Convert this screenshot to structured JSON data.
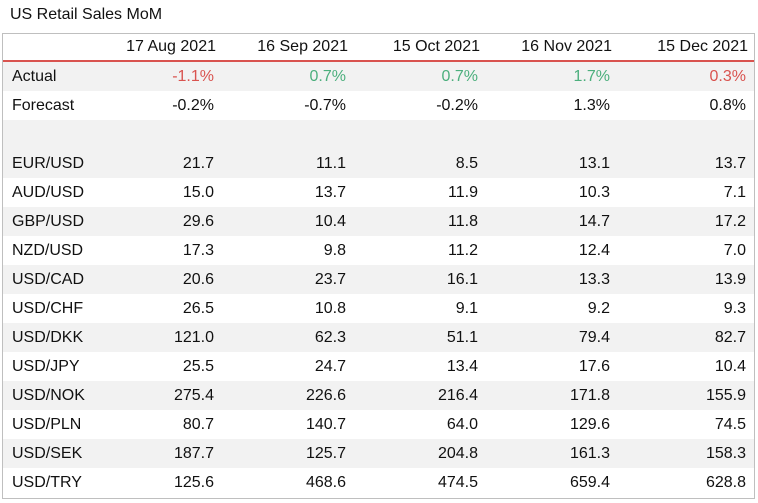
{
  "title": "US Retail Sales MoM",
  "colors": {
    "negative": "#d9534f",
    "positive": "#4caf7d",
    "header_rule": "#d9534f",
    "row_shade": "#f2f2f2"
  },
  "headers": [
    "17 Aug 2021",
    "16 Sep 2021",
    "15 Oct 2021",
    "16 Nov 2021",
    "15 Dec 2021"
  ],
  "actual": {
    "label": "Actual",
    "values": [
      "-1.1%",
      "0.7%",
      "0.7%",
      "1.7%",
      "0.3%"
    ],
    "tone": [
      "negative",
      "positive",
      "positive",
      "positive",
      "negative"
    ]
  },
  "forecast": {
    "label": "Forecast",
    "values": [
      "-0.2%",
      "-0.7%",
      "-0.2%",
      "1.3%",
      "0.8%"
    ]
  },
  "pairs": [
    {
      "label": "EUR/USD",
      "values": [
        "21.7",
        "11.1",
        "8.5",
        "13.1",
        "13.7"
      ]
    },
    {
      "label": "AUD/USD",
      "values": [
        "15.0",
        "13.7",
        "11.9",
        "10.3",
        "7.1"
      ]
    },
    {
      "label": "GBP/USD",
      "values": [
        "29.6",
        "10.4",
        "11.8",
        "14.7",
        "17.2"
      ]
    },
    {
      "label": "NZD/USD",
      "values": [
        "17.3",
        "9.8",
        "11.2",
        "12.4",
        "7.0"
      ]
    },
    {
      "label": "USD/CAD",
      "values": [
        "20.6",
        "23.7",
        "16.1",
        "13.3",
        "13.9"
      ]
    },
    {
      "label": "USD/CHF",
      "values": [
        "26.5",
        "10.8",
        "9.1",
        "9.2",
        "9.3"
      ]
    },
    {
      "label": "USD/DKK",
      "values": [
        "121.0",
        "62.3",
        "51.1",
        "79.4",
        "82.7"
      ]
    },
    {
      "label": "USD/JPY",
      "values": [
        "25.5",
        "24.7",
        "13.4",
        "17.6",
        "10.4"
      ]
    },
    {
      "label": "USD/NOK",
      "values": [
        "275.4",
        "226.6",
        "216.4",
        "171.8",
        "155.9"
      ]
    },
    {
      "label": "USD/PLN",
      "values": [
        "80.7",
        "140.7",
        "64.0",
        "129.6",
        "74.5"
      ]
    },
    {
      "label": "USD/SEK",
      "values": [
        "187.7",
        "125.7",
        "204.8",
        "161.3",
        "158.3"
      ]
    },
    {
      "label": "USD/TRY",
      "values": [
        "125.6",
        "468.6",
        "474.5",
        "659.4",
        "628.8"
      ]
    }
  ]
}
